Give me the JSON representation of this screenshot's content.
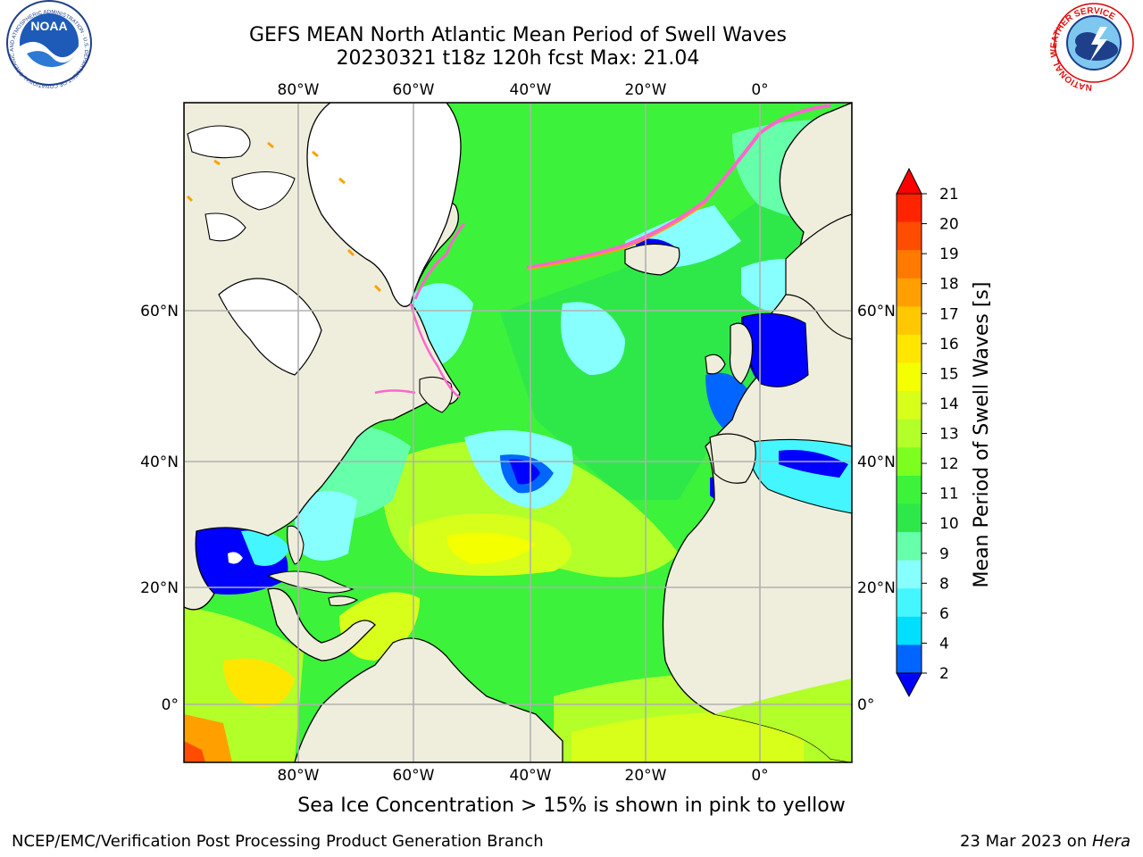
{
  "header": {
    "title_line1": "GEFS MEAN North Atlantic Mean Period of Swell Waves",
    "title_line2": "20230321 t18z 120h fcst   Max: 21.04"
  },
  "logos": {
    "left": {
      "text": "NOAA",
      "ring_text": "NATIONAL OCEANIC AND ATMOSPHERIC ADMINISTRATION · U.S. DEPARTMENT OF COMMERCE"
    },
    "right": {
      "ring_text": "NATIONAL WEATHER SERVICE"
    }
  },
  "map": {
    "lon_labels_top": [
      "80°W",
      "60°W",
      "40°W",
      "20°W",
      "0°"
    ],
    "lon_labels_bottom": [
      "80°W",
      "60°W",
      "40°W",
      "20°W",
      "0°"
    ],
    "lat_labels_left": [
      "60°N",
      "40°N",
      "20°N",
      "0°"
    ],
    "lat_labels_right": [
      "60°N",
      "40°N",
      "20°N",
      "0°"
    ]
  },
  "colorbar": {
    "label": "Mean Period of Swell Waves [s]",
    "ticks": [
      "21",
      "20",
      "19",
      "18",
      "17",
      "16",
      "15",
      "14",
      "13",
      "12",
      "11",
      "10",
      "9",
      "8",
      "6",
      "4",
      "2"
    ],
    "colors": [
      "#ff2400",
      "#ff4d00",
      "#ff7a00",
      "#ffa000",
      "#ffc800",
      "#ffe600",
      "#f4ff00",
      "#d8ff1a",
      "#b2ff2a",
      "#7cff1f",
      "#3cf23a",
      "#2ee84a",
      "#66ffaa",
      "#88ffff",
      "#44f6ff",
      "#00dfff",
      "#0066ff",
      "#0000ff"
    ],
    "over_color": "#ff0000",
    "under_color": "#0000ff"
  },
  "caption": "Sea Ice Concentration > 15% is shown in pink to yellow",
  "footer": {
    "left": "NCEP/EMC/Verification Post Processing Product Generation Branch",
    "right_prefix": "23 Mar 2023 on ",
    "right_host": "Hera"
  }
}
